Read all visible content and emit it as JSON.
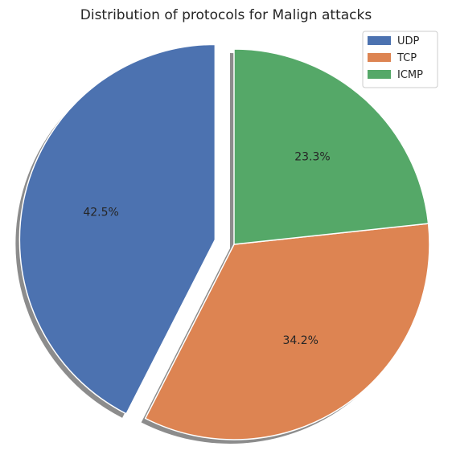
{
  "chart_data": {
    "type": "pie",
    "title": "Distribution of protocols for Malign attacks",
    "categories": [
      "UDP",
      "TCP",
      "ICMP"
    ],
    "values": [
      42.5,
      34.2,
      23.3
    ],
    "labels": [
      "42.5%",
      "34.2%",
      "23.3%"
    ],
    "colors": [
      "#4c72b0",
      "#dd8452",
      "#55a868"
    ],
    "explode": [
      0.1,
      0,
      0
    ],
    "shadow": true,
    "start_angle_deg": 90,
    "direction": "counterclockwise",
    "legend": {
      "position": "top-right",
      "entries": [
        "UDP",
        "TCP",
        "ICMP"
      ]
    }
  }
}
